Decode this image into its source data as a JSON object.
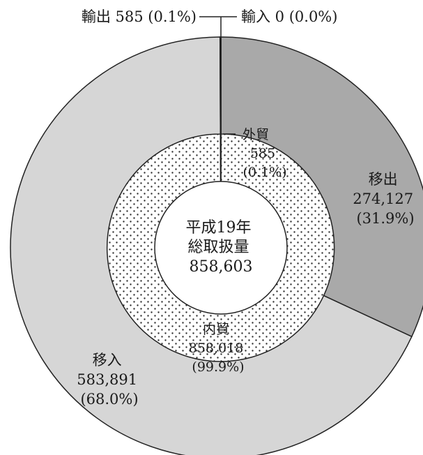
{
  "chart_data": {
    "type": "pie",
    "style": "donut",
    "center_label": [
      "平成19年",
      "総取扱量",
      "858,603"
    ],
    "outer_ring": [
      {
        "name": "移出",
        "value": 274127,
        "percent": "31.9%",
        "color": "#a9a9a9"
      },
      {
        "name": "移入",
        "value": 583891,
        "percent": "68.0%",
        "color": "#d6d6d6"
      },
      {
        "name": "輸出",
        "value": 585,
        "percent": "0.1%",
        "color": "#ffffff"
      },
      {
        "name": "輸入",
        "value": 0,
        "percent": "0.0%",
        "color": "#ffffff"
      }
    ],
    "inner_ring": [
      {
        "name": "内貿",
        "value": 858018,
        "percent": "99.9%",
        "pattern": "dots"
      },
      {
        "name": "外貿",
        "value": 585,
        "percent": "0.1%",
        "pattern": "dots"
      }
    ]
  },
  "labels": {
    "export": "輸出 585 (0.1%)",
    "import": "輸入 0 (0.0%)",
    "idou_out": [
      "移出",
      "274,127",
      "(31.9%)"
    ],
    "idou_in": [
      "移入",
      "583,891",
      "(68.0%)"
    ],
    "naiboeki": [
      "内貿",
      "858,018",
      "(99.9%)"
    ],
    "gaiboeki": [
      "外貿",
      "585",
      "(0.1%)"
    ]
  }
}
